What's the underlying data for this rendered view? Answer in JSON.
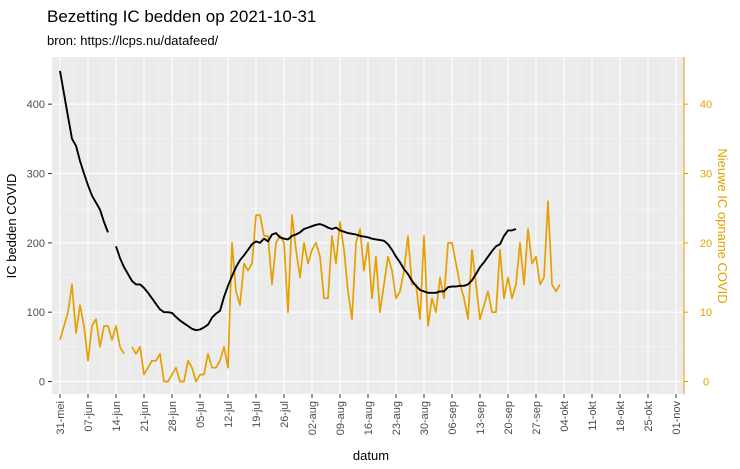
{
  "chart_data": {
    "type": "line",
    "title": "Bezetting IC bedden op 2021-10-31",
    "subtitle": "bron: https://lcps.nu/datafeed/",
    "xlabel": "datum",
    "ylabel_left": "IC bedden COVID",
    "ylabel_right": "Nieuwe IC opname COVID",
    "x_range_days": [
      -2,
      156
    ],
    "ylim_left": [
      -18,
      468
    ],
    "ylim_right": [
      -1.8,
      46.8
    ],
    "yticks_left": [
      0,
      100,
      200,
      300,
      400
    ],
    "yticks_right": [
      0,
      10,
      20,
      30,
      40
    ],
    "xticks": [
      {
        "day": 0,
        "label": "31-mei"
      },
      {
        "day": 7,
        "label": "07-jun"
      },
      {
        "day": 14,
        "label": "14-jun"
      },
      {
        "day": 21,
        "label": "21-jun"
      },
      {
        "day": 28,
        "label": "28-jun"
      },
      {
        "day": 35,
        "label": "05-jul"
      },
      {
        "day": 42,
        "label": "12-jul"
      },
      {
        "day": 49,
        "label": "19-jul"
      },
      {
        "day": 56,
        "label": "26-jul"
      },
      {
        "day": 63,
        "label": "02-aug"
      },
      {
        "day": 70,
        "label": "09-aug"
      },
      {
        "day": 77,
        "label": "16-aug"
      },
      {
        "day": 84,
        "label": "23-aug"
      },
      {
        "day": 91,
        "label": "30-aug"
      },
      {
        "day": 98,
        "label": "06-sep"
      },
      {
        "day": 105,
        "label": "13-sep"
      },
      {
        "day": 112,
        "label": "20-sep"
      },
      {
        "day": 119,
        "label": "27-sep"
      },
      {
        "day": 126,
        "label": "04-okt"
      },
      {
        "day": 133,
        "label": "11-okt"
      },
      {
        "day": 140,
        "label": "18-okt"
      },
      {
        "day": 147,
        "label": "25-okt"
      },
      {
        "day": 154,
        "label": "01-nov"
      }
    ],
    "series": [
      {
        "name": "IC bedden COVID",
        "axis": "left",
        "color": "#000000",
        "points": [
          [
            0,
            448
          ],
          [
            1,
            415
          ],
          [
            2,
            382
          ],
          [
            3,
            350
          ],
          [
            4,
            340
          ],
          [
            5,
            318
          ],
          [
            6,
            300
          ],
          [
            7,
            283
          ],
          [
            8,
            268
          ],
          [
            9,
            258
          ],
          [
            10,
            248
          ],
          [
            11,
            230
          ],
          [
            12,
            215
          ],
          [
            null,
            null
          ],
          [
            14,
            195
          ],
          [
            15,
            178
          ],
          [
            16,
            165
          ],
          [
            17,
            155
          ],
          [
            18,
            145
          ],
          [
            19,
            140
          ],
          [
            20,
            140
          ],
          [
            21,
            135
          ],
          [
            22,
            128
          ],
          [
            23,
            120
          ],
          [
            24,
            112
          ],
          [
            25,
            104
          ],
          [
            26,
            100
          ],
          [
            27,
            100
          ],
          [
            28,
            99
          ],
          [
            29,
            93
          ],
          [
            30,
            88
          ],
          [
            31,
            84
          ],
          [
            32,
            80
          ],
          [
            33,
            76
          ],
          [
            34,
            74
          ],
          [
            35,
            75
          ],
          [
            36,
            78
          ],
          [
            37,
            82
          ],
          [
            38,
            92
          ],
          [
            39,
            98
          ],
          [
            40,
            102
          ],
          [
            41,
            122
          ],
          [
            42,
            138
          ],
          [
            43,
            152
          ],
          [
            44,
            165
          ],
          [
            45,
            175
          ],
          [
            46,
            182
          ],
          [
            47,
            190
          ],
          [
            48,
            198
          ],
          [
            49,
            202
          ],
          [
            50,
            200
          ],
          [
            51,
            206
          ],
          [
            52,
            202
          ],
          [
            53,
            212
          ],
          [
            54,
            214
          ],
          [
            55,
            208
          ],
          [
            56,
            206
          ],
          [
            57,
            205
          ],
          [
            58,
            210
          ],
          [
            59,
            212
          ],
          [
            60,
            215
          ],
          [
            61,
            220
          ],
          [
            62,
            222
          ],
          [
            63,
            224
          ],
          [
            64,
            226
          ],
          [
            65,
            227
          ],
          [
            66,
            225
          ],
          [
            67,
            222
          ],
          [
            68,
            220
          ],
          [
            69,
            222
          ],
          [
            70,
            218
          ],
          [
            71,
            216
          ],
          [
            72,
            214
          ],
          [
            73,
            213
          ],
          [
            74,
            212
          ],
          [
            75,
            210
          ],
          [
            76,
            209
          ],
          [
            77,
            208
          ],
          [
            78,
            206
          ],
          [
            79,
            205
          ],
          [
            80,
            204
          ],
          [
            81,
            203
          ],
          [
            82,
            198
          ],
          [
            83,
            190
          ],
          [
            84,
            180
          ],
          [
            85,
            172
          ],
          [
            86,
            162
          ],
          [
            87,
            155
          ],
          [
            88,
            145
          ],
          [
            89,
            138
          ],
          [
            90,
            132
          ],
          [
            91,
            130
          ],
          [
            92,
            128
          ],
          [
            93,
            128
          ],
          [
            94,
            128
          ],
          [
            95,
            130
          ],
          [
            96,
            130
          ],
          [
            97,
            136
          ],
          [
            98,
            137
          ],
          [
            99,
            137
          ],
          [
            100,
            138
          ],
          [
            101,
            138
          ],
          [
            102,
            140
          ],
          [
            103,
            146
          ],
          [
            104,
            155
          ],
          [
            105,
            165
          ],
          [
            106,
            172
          ],
          [
            107,
            180
          ],
          [
            108,
            188
          ],
          [
            109,
            195
          ],
          [
            110,
            198
          ],
          [
            111,
            210
          ],
          [
            112,
            218
          ],
          [
            113,
            218
          ],
          [
            114,
            220
          ]
        ]
      },
      {
        "name": "Nieuwe IC opname COVID",
        "axis": "right",
        "color": "#e69f00",
        "points": [
          [
            0,
            6
          ],
          [
            1,
            8
          ],
          [
            2,
            10
          ],
          [
            3,
            14
          ],
          [
            4,
            7
          ],
          [
            5,
            11
          ],
          [
            6,
            8
          ],
          [
            7,
            3
          ],
          [
            8,
            8
          ],
          [
            9,
            9
          ],
          [
            10,
            5
          ],
          [
            11,
            8
          ],
          [
            12,
            8
          ],
          [
            13,
            6
          ],
          [
            14,
            8
          ],
          [
            15,
            5
          ],
          [
            16,
            4
          ],
          [
            null,
            null
          ],
          [
            18,
            5
          ],
          [
            19,
            4
          ],
          [
            20,
            5
          ],
          [
            21,
            1
          ],
          [
            22,
            2
          ],
          [
            23,
            3
          ],
          [
            24,
            3
          ],
          [
            25,
            4
          ],
          [
            26,
            0
          ],
          [
            27,
            0
          ],
          [
            28,
            1
          ],
          [
            29,
            2
          ],
          [
            30,
            0
          ],
          [
            31,
            0
          ],
          [
            32,
            3
          ],
          [
            33,
            2
          ],
          [
            34,
            0
          ],
          [
            35,
            1
          ],
          [
            36,
            1
          ],
          [
            37,
            4
          ],
          [
            38,
            2
          ],
          [
            39,
            2
          ],
          [
            40,
            3
          ],
          [
            41,
            5
          ],
          [
            42,
            2
          ],
          [
            43,
            20
          ],
          [
            44,
            13
          ],
          [
            45,
            11
          ],
          [
            46,
            17
          ],
          [
            47,
            16
          ],
          [
            48,
            17
          ],
          [
            49,
            24
          ],
          [
            50,
            24
          ],
          [
            51,
            21
          ],
          [
            52,
            21
          ],
          [
            53,
            14
          ],
          [
            54,
            20
          ],
          [
            55,
            21
          ],
          [
            56,
            20
          ],
          [
            57,
            10
          ],
          [
            58,
            24
          ],
          [
            59,
            19
          ],
          [
            60,
            15
          ],
          [
            61,
            20
          ],
          [
            62,
            17
          ],
          [
            63,
            19
          ],
          [
            64,
            20
          ],
          [
            65,
            18
          ],
          [
            66,
            12
          ],
          [
            67,
            12
          ],
          [
            68,
            21
          ],
          [
            69,
            17
          ],
          [
            70,
            23
          ],
          [
            71,
            19
          ],
          [
            72,
            13
          ],
          [
            73,
            9
          ],
          [
            74,
            20
          ],
          [
            75,
            22
          ],
          [
            76,
            16
          ],
          [
            77,
            20
          ],
          [
            78,
            12
          ],
          [
            79,
            18
          ],
          [
            80,
            10
          ],
          [
            81,
            14
          ],
          [
            82,
            18
          ],
          [
            83,
            16
          ],
          [
            84,
            12
          ],
          [
            85,
            13
          ],
          [
            86,
            16
          ],
          [
            87,
            21
          ],
          [
            88,
            14
          ],
          [
            89,
            14
          ],
          [
            90,
            9
          ],
          [
            91,
            21
          ],
          [
            92,
            8
          ],
          [
            93,
            12
          ],
          [
            94,
            10
          ],
          [
            95,
            15
          ],
          [
            96,
            12
          ],
          [
            97,
            20
          ],
          [
            98,
            20
          ],
          [
            99,
            17
          ],
          [
            100,
            14
          ],
          [
            101,
            12
          ],
          [
            102,
            9
          ],
          [
            103,
            19
          ],
          [
            104,
            14
          ],
          [
            105,
            9
          ],
          [
            106,
            11
          ],
          [
            107,
            13
          ],
          [
            108,
            10
          ],
          [
            109,
            10
          ],
          [
            110,
            19
          ],
          [
            111,
            12
          ],
          [
            112,
            15
          ],
          [
            113,
            12
          ],
          [
            114,
            14
          ],
          [
            115,
            20
          ],
          [
            116,
            14
          ],
          [
            117,
            22
          ],
          [
            118,
            17
          ],
          [
            119,
            18
          ],
          [
            120,
            14
          ],
          [
            121,
            15
          ],
          [
            122,
            26
          ],
          [
            123,
            14
          ],
          [
            124,
            13
          ],
          [
            125,
            14
          ]
        ]
      }
    ]
  }
}
